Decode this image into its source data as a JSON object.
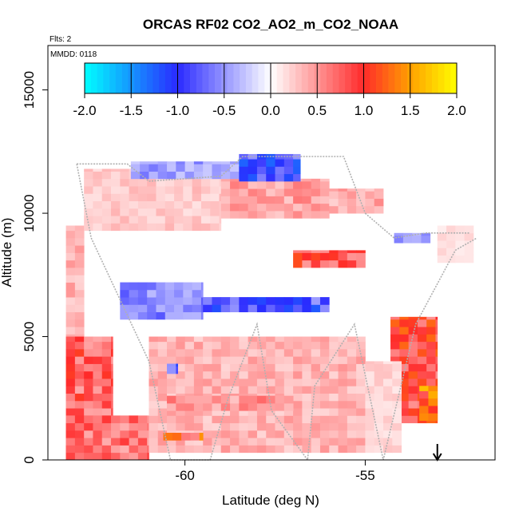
{
  "chart_data": {
    "type": "heatmap",
    "title": "ORCAS RF02 CO2_AO2_m_CO2_NOAA",
    "flts_label": "Flts: 2",
    "mmdd_label": "MMDD: 0118",
    "xlabel": "Latitude (deg N)",
    "ylabel": "Altitude (m)",
    "xlim": [
      -63.8,
      -51.4
    ],
    "ylim": [
      0,
      16800
    ],
    "x_ticks": [
      -60,
      -55
    ],
    "x_tick_labels": [
      "-60",
      "-55"
    ],
    "y_ticks": [
      0,
      5000,
      10000,
      15000
    ],
    "y_tick_labels": [
      "0",
      "5000",
      "10000",
      "15000"
    ],
    "colorbar": {
      "min": -2.0,
      "max": 2.0,
      "ticks": [
        -2.0,
        -1.5,
        -1.0,
        -0.5,
        0.0,
        0.5,
        1.0,
        1.5,
        2.0
      ],
      "tick_labels": [
        "-2.0",
        "-1.5",
        "-1.0",
        "-0.5",
        "0.0",
        "0.5",
        "1.0",
        "1.5",
        "2.0"
      ],
      "colors": [
        "#00ffff",
        "#2a2aff",
        "#ffffff",
        "#ff2a2a",
        "#ffa000",
        "#ffff00"
      ],
      "color_stops": [
        -2.0,
        -1.0,
        0.0,
        1.0,
        1.5,
        2.0
      ]
    },
    "grid": false,
    "legend": "colorbar top",
    "arrow_marker": {
      "x": -53.0
    },
    "cell_size": {
      "dlat": 0.25,
      "dalt": 300
    },
    "regions": [
      {
        "lat": [
          -63.3,
          -62.8
        ],
        "alt": [
          0,
          9500
        ],
        "value": 0.35
      },
      {
        "lat": [
          -63.3,
          -62.0
        ],
        "alt": [
          0,
          5000
        ],
        "value": 0.75
      },
      {
        "lat": [
          -63.3,
          -61.0
        ],
        "alt": [
          0,
          1800
        ],
        "value": 0.65
      },
      {
        "lat": [
          -62.8,
          -59.0
        ],
        "alt": [
          9300,
          11800
        ],
        "value": 0.25
      },
      {
        "lat": [
          -59.0,
          -56.0
        ],
        "alt": [
          9800,
          11400
        ],
        "value": 0.45
      },
      {
        "lat": [
          -61.5,
          -58.5
        ],
        "alt": [
          11400,
          12100
        ],
        "value": -0.45
      },
      {
        "lat": [
          -58.5,
          -56.8
        ],
        "alt": [
          11300,
          12400
        ],
        "value": -0.9
      },
      {
        "lat": [
          -61.8,
          -59.5
        ],
        "alt": [
          5700,
          7200
        ],
        "value": -0.55
      },
      {
        "lat": [
          -59.5,
          -56.0
        ],
        "alt": [
          6000,
          6600
        ],
        "value": -0.85
      },
      {
        "lat": [
          -57.0,
          -55.0
        ],
        "alt": [
          7800,
          8500
        ],
        "value": 0.8
      },
      {
        "lat": [
          -56.0,
          -54.5
        ],
        "alt": [
          10000,
          11000
        ],
        "value": 0.4
      },
      {
        "lat": [
          -54.3,
          -53.0
        ],
        "alt": [
          1500,
          5800
        ],
        "value": 0.9
      },
      {
        "lat": [
          -53.5,
          -53.0
        ],
        "alt": [
          1600,
          3000
        ],
        "value": 1.35
      },
      {
        "lat": [
          -61.0,
          -55.0
        ],
        "alt": [
          300,
          5000
        ],
        "value": 0.35
      },
      {
        "lat": [
          -55.0,
          -54.0
        ],
        "alt": [
          300,
          4000
        ],
        "value": 0.2
      },
      {
        "lat": [
          -60.5,
          -57.0
        ],
        "alt": [
          2000,
          2600
        ],
        "value": 0.5
      },
      {
        "lat": [
          -60.5,
          -60.2
        ],
        "alt": [
          3500,
          3900
        ],
        "value": -0.9
      },
      {
        "lat": [
          -60.6,
          -59.5
        ],
        "alt": [
          800,
          1100
        ],
        "value": 1.0
      },
      {
        "lat": [
          -53.0,
          -52.0
        ],
        "alt": [
          8000,
          9500
        ],
        "value": 0.15
      },
      {
        "lat": [
          -54.2,
          -53.2
        ],
        "alt": [
          8800,
          9200
        ],
        "value": -0.5
      }
    ],
    "flight_tracks": [
      {
        "lat": [
          -63.0,
          -61.6,
          -61.0,
          -59.0,
          -58.4,
          -56.8,
          -55.6,
          -55.0
        ],
        "alt": [
          12000,
          12000,
          11300,
          11500,
          12300,
          12300,
          12300,
          10000
        ]
      },
      {
        "lat": [
          -55.0,
          -54.2,
          -53.3,
          -52.1
        ],
        "alt": [
          10000,
          9000,
          9200,
          9200
        ]
      },
      {
        "lat": [
          -63.0,
          -62.6,
          -61.0,
          -60.4,
          -59.3,
          -58.8,
          -58.0,
          -57.6,
          -56.6,
          -56.4,
          -55.3,
          -54.5,
          -53.6,
          -52.5,
          -51.9
        ],
        "alt": [
          12000,
          9000,
          4000,
          0,
          0,
          2500,
          5500,
          2000,
          0,
          3000,
          5500,
          0,
          5500,
          8500,
          9000
        ]
      }
    ]
  }
}
